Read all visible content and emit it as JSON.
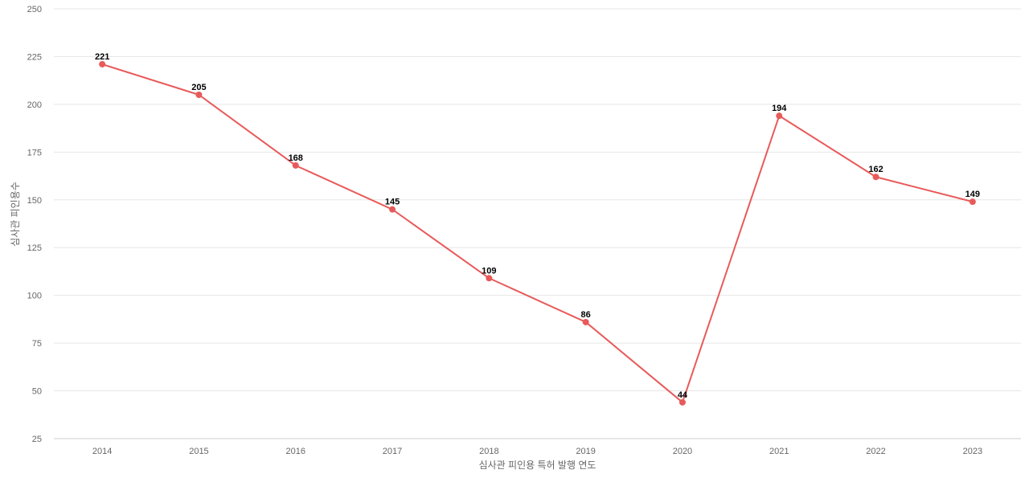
{
  "chart_data": {
    "type": "line",
    "title": "",
    "xlabel": "심사관 피인용 특허 발행 연도",
    "ylabel": "심사관 피인용수",
    "categories": [
      "2014",
      "2015",
      "2016",
      "2017",
      "2018",
      "2019",
      "2020",
      "2021",
      "2022",
      "2023"
    ],
    "series": [
      {
        "values": [
          221,
          205,
          168,
          145,
          109,
          86,
          44,
          194,
          162,
          149
        ],
        "color": "#e85a5a"
      }
    ],
    "ylim": [
      25,
      250
    ],
    "yticks": [
      25,
      50,
      75,
      100,
      125,
      150,
      175,
      200,
      225,
      250
    ],
    "grid": true,
    "data_labels": true
  }
}
